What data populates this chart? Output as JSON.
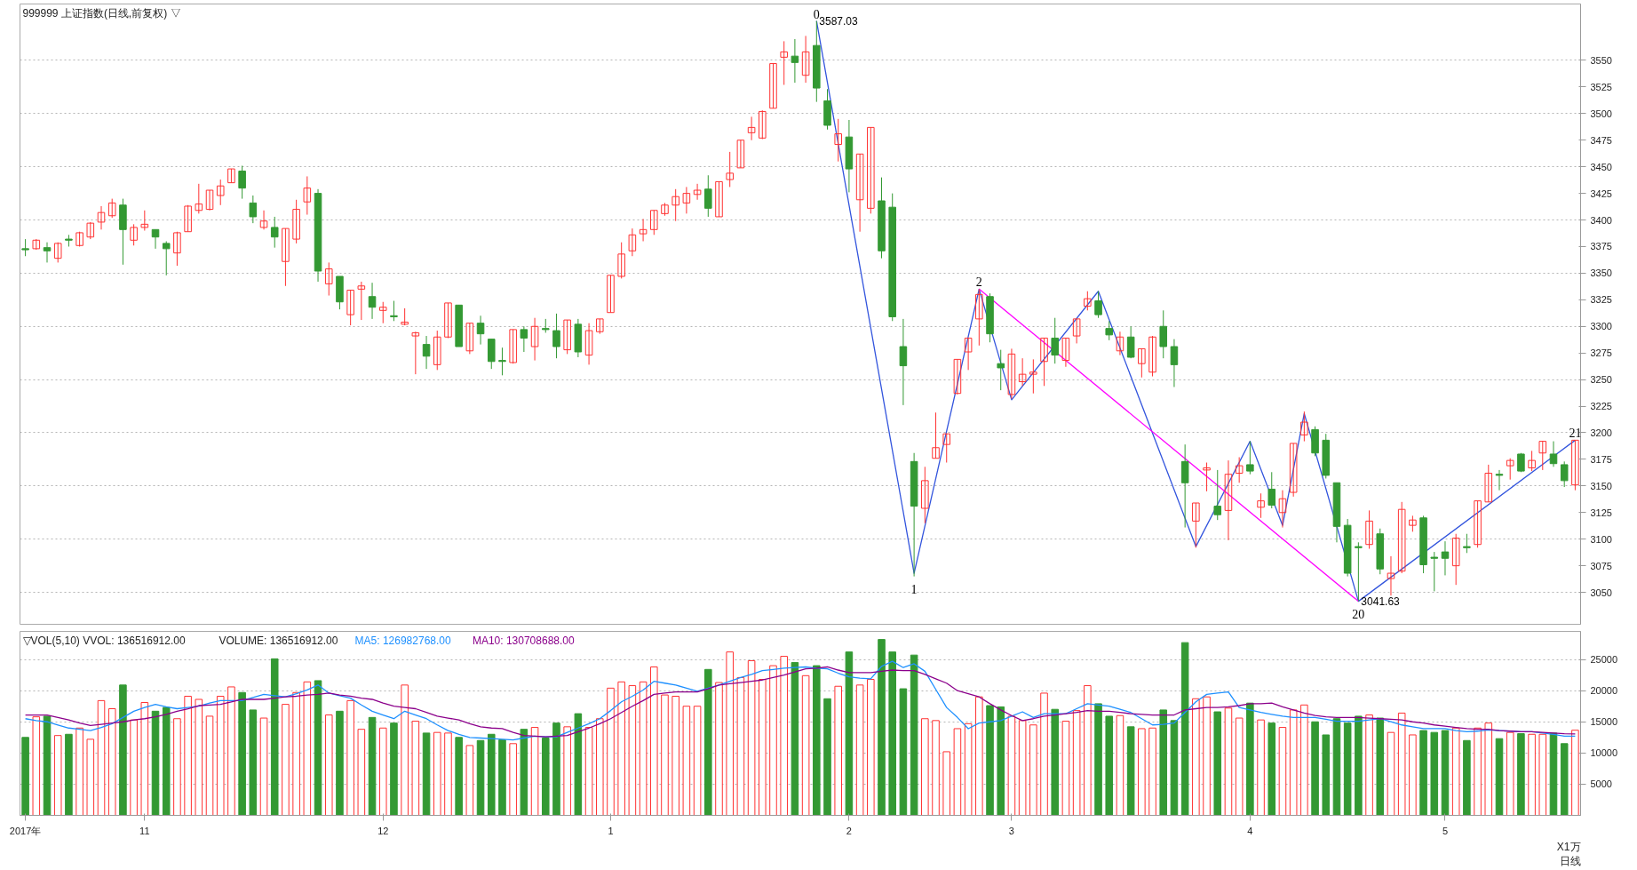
{
  "chart_data": [
    {
      "type": "candlestick",
      "title": "999999 上证指数(日线,前复权) ▽",
      "tick_labels": "y",
      "grid": "y",
      "ylim": [
        3020,
        3603
      ],
      "yticks": [
        3050,
        3075,
        3100,
        3125,
        3150,
        3175,
        3200,
        3225,
        3250,
        3275,
        3300,
        3325,
        3350,
        3375,
        3400,
        3425,
        3450,
        3475,
        3500,
        3525,
        3550
      ],
      "categories": [
        null,
        null,
        null,
        null,
        null,
        null,
        null,
        null,
        null,
        null,
        null,
        null,
        null,
        null,
        null,
        null,
        null,
        null,
        null,
        null,
        null,
        null,
        null,
        null,
        null,
        null,
        null,
        null,
        null,
        null,
        null,
        null,
        null,
        null,
        null,
        null,
        null,
        null,
        null,
        null,
        null,
        null,
        null,
        null,
        null,
        null,
        null,
        null,
        null,
        null,
        null,
        null,
        null,
        null,
        null,
        null,
        null,
        null,
        null,
        null,
        null,
        null,
        null,
        null,
        null,
        null,
        null,
        null,
        null,
        null,
        null,
        null,
        null,
        null,
        null,
        null,
        null,
        null,
        null,
        null,
        null,
        null,
        null,
        null,
        null,
        null,
        null,
        null,
        null,
        null,
        null,
        null,
        null,
        null,
        null,
        null,
        null,
        null,
        null,
        null,
        null,
        null,
        null,
        null,
        null,
        null,
        null,
        null,
        null,
        null,
        null,
        null,
        null,
        null,
        null,
        null,
        null,
        null,
        null,
        null,
        null,
        null,
        null,
        null,
        null,
        null,
        null,
        null,
        null,
        null,
        null,
        null,
        null,
        null,
        null,
        null,
        null,
        null,
        null,
        null,
        null,
        null,
        null,
        null
      ],
      "ohlc": [
        [
          3373,
          3382,
          3366,
          3372
        ],
        [
          3373,
          3382,
          3372,
          3381
        ],
        [
          3374,
          3379,
          3360,
          3371
        ],
        [
          3364,
          3379,
          3360,
          3378
        ],
        [
          3382,
          3386,
          3375,
          3381
        ],
        [
          3376,
          3389,
          3375,
          3388
        ],
        [
          3384,
          3398,
          3382,
          3397
        ],
        [
          3398,
          3413,
          3391,
          3407
        ],
        [
          3404,
          3420,
          3402,
          3416
        ],
        [
          3414,
          3420,
          3358,
          3391
        ],
        [
          3381,
          3396,
          3376,
          3393
        ],
        [
          3393,
          3409,
          3390,
          3396
        ],
        [
          3391,
          3391,
          3373,
          3384
        ],
        [
          3378,
          3380,
          3348,
          3373
        ],
        [
          3369,
          3389,
          3357,
          3388
        ],
        [
          3389,
          3414,
          3389,
          3413
        ],
        [
          3409,
          3434,
          3406,
          3415
        ],
        [
          3410,
          3428,
          3409,
          3428
        ],
        [
          3423,
          3438,
          3414,
          3432
        ],
        [
          3435,
          3448,
          3435,
          3448
        ],
        [
          3446,
          3451,
          3420,
          3430
        ],
        [
          3416,
          3423,
          3397,
          3403
        ],
        [
          3393,
          3409,
          3391,
          3399
        ],
        [
          3393,
          3403,
          3374,
          3384
        ],
        [
          3361,
          3392,
          3338,
          3392
        ],
        [
          3382,
          3419,
          3378,
          3410
        ],
        [
          3417,
          3441,
          3405,
          3430
        ],
        [
          3425,
          3429,
          3342,
          3352
        ],
        [
          3340,
          3360,
          3329,
          3354
        ],
        [
          3347,
          3347,
          3316,
          3323
        ],
        [
          3311,
          3334,
          3301,
          3334
        ],
        [
          3335,
          3342,
          3306,
          3338
        ],
        [
          3328,
          3341,
          3307,
          3318
        ],
        [
          3315,
          3323,
          3303,
          3318
        ],
        [
          3310,
          3324,
          3305,
          3309
        ],
        [
          3302,
          3317,
          3301,
          3304
        ],
        [
          3291,
          3295,
          3255,
          3294
        ],
        [
          3283,
          3291,
          3260,
          3272
        ],
        [
          3264,
          3296,
          3259,
          3290
        ],
        [
          3290,
          3322,
          3289,
          3322
        ],
        [
          3320,
          3320,
          3281,
          3281
        ],
        [
          3277,
          3303,
          3274,
          3303
        ],
        [
          3303,
          3310,
          3283,
          3293
        ],
        [
          3288,
          3288,
          3260,
          3267
        ],
        [
          3268,
          3280,
          3254,
          3267
        ],
        [
          3266,
          3297,
          3265,
          3297
        ],
        [
          3297,
          3300,
          3276,
          3289
        ],
        [
          3281,
          3308,
          3268,
          3300
        ],
        [
          3298,
          3307,
          3294,
          3297
        ],
        [
          3296,
          3312,
          3270,
          3281
        ],
        [
          3278,
          3306,
          3274,
          3306
        ],
        [
          3302,
          3307,
          3271,
          3276
        ],
        [
          3273,
          3303,
          3264,
          3296
        ],
        [
          3295,
          3307,
          3293,
          3307
        ],
        [
          3313,
          3348,
          3313,
          3348
        ],
        [
          3347,
          3379,
          3345,
          3368
        ],
        [
          3371,
          3392,
          3366,
          3386
        ],
        [
          3387,
          3401,
          3380,
          3391
        ],
        [
          3391,
          3409,
          3386,
          3409
        ],
        [
          3406,
          3416,
          3404,
          3414
        ],
        [
          3414,
          3429,
          3399,
          3422
        ],
        [
          3416,
          3431,
          3406,
          3425
        ],
        [
          3424,
          3434,
          3419,
          3428
        ],
        [
          3429,
          3442,
          3403,
          3411
        ],
        [
          3403,
          3436,
          3403,
          3436
        ],
        [
          3438,
          3464,
          3431,
          3444
        ],
        [
          3449,
          3475,
          3449,
          3475
        ],
        [
          3482,
          3497,
          3475,
          3487
        ],
        [
          3477,
          3503,
          3476,
          3502
        ],
        [
          3505,
          3547,
          3505,
          3547
        ],
        [
          3553,
          3568,
          3527,
          3558
        ],
        [
          3554,
          3570,
          3529,
          3548
        ],
        [
          3536,
          3573,
          3529,
          3558
        ],
        [
          3564,
          3587.03,
          3511,
          3524
        ],
        [
          3512,
          3523,
          3485,
          3489
        ],
        [
          3471,
          3495,
          3455,
          3481
        ],
        [
          3478,
          3494,
          3426,
          3448
        ],
        [
          3419,
          3462,
          3389,
          3462
        ],
        [
          3411,
          3487,
          3406,
          3487
        ],
        [
          3418,
          3440,
          3364,
          3371
        ],
        [
          3412,
          3425,
          3305,
          3309
        ],
        [
          3281,
          3307,
          3226,
          3263
        ],
        [
          3173,
          3181,
          3065,
          3131
        ],
        [
          3129,
          3168,
          3115,
          3155
        ],
        [
          3176,
          3219,
          3176,
          3186
        ],
        [
          3189,
          3199,
          3172,
          3199
        ],
        [
          3237,
          3269,
          3236,
          3269
        ],
        [
          3276,
          3289,
          3259,
          3289
        ],
        [
          3307,
          3335,
          3282,
          3330
        ],
        [
          3328,
          3331,
          3285,
          3293
        ],
        [
          3265,
          3278,
          3240,
          3261
        ],
        [
          3236,
          3279,
          3232,
          3274
        ],
        [
          3248,
          3270,
          3244,
          3255
        ],
        [
          3255,
          3269,
          3237,
          3257
        ],
        [
          3267,
          3289,
          3244,
          3289
        ],
        [
          3289,
          3308,
          3265,
          3273
        ],
        [
          3268,
          3289,
          3262,
          3289
        ],
        [
          3291,
          3307,
          3284,
          3307
        ],
        [
          3319,
          3333,
          3315,
          3326
        ],
        [
          3324,
          3333,
          3308,
          3311
        ],
        [
          3298,
          3305,
          3287,
          3292
        ],
        [
          3277,
          3295,
          3273,
          3290
        ],
        [
          3290,
          3300,
          3270,
          3271
        ],
        [
          3265,
          3279,
          3252,
          3279
        ],
        [
          3257,
          3291,
          3253,
          3290
        ],
        [
          3300,
          3315,
          3270,
          3281
        ],
        [
          3281,
          3288,
          3243,
          3264
        ],
        [
          3173,
          3189,
          3111,
          3153
        ],
        [
          3117,
          3134,
          3092,
          3134
        ],
        [
          3165,
          3172,
          3145,
          3167
        ],
        [
          3131,
          3165,
          3118,
          3123
        ],
        [
          3127,
          3174,
          3099,
          3161
        ],
        [
          3162,
          3177,
          3153,
          3169
        ],
        [
          3170,
          3192,
          3161,
          3164
        ],
        [
          3130,
          3143,
          3120,
          3136
        ],
        [
          3147,
          3163,
          3129,
          3132
        ],
        [
          3125,
          3146,
          3111,
          3138
        ],
        [
          3144,
          3190,
          3140,
          3190
        ],
        [
          3198,
          3220,
          3192,
          3210
        ],
        [
          3203,
          3206,
          3178,
          3181
        ],
        [
          3193,
          3199,
          3157,
          3160
        ],
        [
          3153,
          3153,
          3097,
          3112
        ],
        [
          3113,
          3119,
          3065,
          3068
        ],
        [
          3093,
          3097,
          3041.63,
          3092
        ],
        [
          3095,
          3127,
          3091,
          3117
        ],
        [
          3105,
          3110,
          3067,
          3072
        ],
        [
          3063,
          3084,
          3047,
          3068
        ],
        [
          3070,
          3135,
          3068,
          3128
        ],
        [
          3113,
          3122,
          3107,
          3118
        ],
        [
          3120,
          3122,
          3068,
          3076
        ],
        [
          3083,
          3088,
          3051,
          3082
        ],
        [
          3088,
          3098,
          3066,
          3082
        ],
        [
          3075,
          3105,
          3057,
          3101
        ],
        [
          3093,
          3105,
          3087,
          3092
        ],
        [
          3095,
          3136,
          3092,
          3136
        ],
        [
          3135,
          3170,
          3135,
          3162
        ],
        [
          3161,
          3165,
          3146,
          3160
        ],
        [
          3169,
          3176,
          3156,
          3174
        ],
        [
          3180,
          3181,
          3163,
          3164
        ],
        [
          3167,
          3183,
          3164,
          3174
        ],
        [
          3181,
          3192,
          3165,
          3192
        ],
        [
          3180,
          3192,
          3168,
          3171
        ],
        [
          3170,
          3173,
          3149,
          3155
        ],
        [
          3151,
          3193,
          3146,
          3193
        ]
      ],
      "colors": [
        "#339933",
        "#ff3232",
        "#339933",
        "#ff3232",
        "#339933",
        "#ff3232",
        "#ff3232",
        "#ff3232",
        "#ff3232",
        "#339933",
        "#ff3232",
        "#ff3232",
        "#339933",
        "#339933",
        "#ff3232",
        "#ff3232",
        "#ff3232",
        "#ff3232",
        "#ff3232",
        "#ff3232",
        "#339933",
        "#339933",
        "#ff3232",
        "#339933",
        "#ff3232",
        "#ff3232",
        "#ff3232",
        "#339933",
        "#ff3232",
        "#339933",
        "#ff3232",
        "#ff3232",
        "#339933",
        "#ff3232",
        "#339933",
        "#ff3232",
        "#ff3232",
        "#339933",
        "#ff3232",
        "#ff3232",
        "#339933",
        "#ff3232",
        "#339933",
        "#339933",
        "#339933",
        "#ff3232",
        "#339933",
        "#ff3232",
        "#339933",
        "#339933",
        "#ff3232",
        "#339933",
        "#ff3232",
        "#ff3232",
        "#ff3232",
        "#ff3232",
        "#ff3232",
        "#ff3232",
        "#ff3232",
        "#ff3232",
        "#ff3232",
        "#ff3232",
        "#ff3232",
        "#339933",
        "#ff3232",
        "#ff3232",
        "#ff3232",
        "#ff3232",
        "#ff3232",
        "#ff3232",
        "#ff3232",
        "#339933",
        "#ff3232",
        "#339933",
        "#339933",
        "#ff3232",
        "#339933",
        "#ff3232",
        "#ff3232",
        "#339933",
        "#339933",
        "#339933",
        "#339933",
        "#ff3232",
        "#ff3232",
        "#ff3232",
        "#ff3232",
        "#ff3232",
        "#ff3232",
        "#339933",
        "#339933",
        "#ff3232",
        "#ff3232",
        "#ff3232",
        "#ff3232",
        "#339933",
        "#ff3232",
        "#ff3232",
        "#ff3232",
        "#339933",
        "#339933",
        "#ff3232",
        "#339933",
        "#ff3232",
        "#ff3232",
        "#339933",
        "#339933",
        "#339933",
        "#ff3232",
        "#ff3232",
        "#339933",
        "#ff3232",
        "#ff3232",
        "#339933",
        "#ff3232",
        "#339933",
        "#ff3232",
        "#ff3232",
        "#ff3232",
        "#339933",
        "#339933",
        "#339933",
        "#339933",
        "#339933",
        "#ff3232",
        "#339933",
        "#ff3232",
        "#ff3232",
        "#ff3232",
        "#339933",
        "#339933",
        "#339933",
        "#ff3232",
        "#339933",
        "#ff3232",
        "#ff3232",
        "#339933",
        "#ff3232",
        "#339933",
        "#ff3232",
        "#ff3232",
        "#339933",
        "#339933",
        "#ff3232"
      ],
      "series": [
        {
          "type": "line",
          "color": "#3355dd",
          "values": [
            null,
            null,
            null,
            null,
            null,
            null,
            null,
            null,
            null,
            null,
            null,
            null,
            null,
            null,
            null,
            null,
            null,
            null,
            null,
            null,
            null,
            null,
            null,
            null,
            null,
            null,
            null,
            null,
            null,
            null,
            null,
            null,
            null,
            null,
            null,
            null,
            null,
            null,
            null,
            null,
            null,
            null,
            null,
            null,
            null,
            null,
            null,
            null,
            null,
            null,
            null,
            null,
            null,
            null,
            null,
            null,
            null,
            null,
            null,
            null,
            null,
            null,
            null,
            null,
            null,
            null,
            null,
            null,
            null,
            null,
            null,
            null,
            null,
            3587.03,
            null,
            null,
            null,
            null,
            null,
            null,
            null,
            null,
            3068,
            null,
            null,
            null,
            null,
            null,
            3335,
            null,
            null,
            3231,
            null,
            null,
            null,
            null,
            null,
            null,
            null,
            3333,
            null,
            null,
            null,
            null,
            null,
            null,
            null,
            null,
            3093,
            null,
            null,
            null,
            null,
            3192,
            null,
            null,
            3113,
            null,
            3218,
            null,
            null,
            null,
            null,
            3041.63,
            null,
            null,
            null,
            null,
            null,
            null,
            null,
            null,
            null,
            null,
            null,
            null,
            null,
            null,
            null,
            null,
            null,
            null,
            null,
            3193
          ]
        },
        {
          "type": "line",
          "color": "#ff00ff",
          "values": [
            null,
            null,
            null,
            null,
            null,
            null,
            null,
            null,
            null,
            null,
            null,
            null,
            null,
            null,
            null,
            null,
            null,
            null,
            null,
            null,
            null,
            null,
            null,
            null,
            null,
            null,
            null,
            null,
            null,
            null,
            null,
            null,
            null,
            null,
            null,
            null,
            null,
            null,
            null,
            null,
            null,
            null,
            null,
            null,
            null,
            null,
            null,
            null,
            null,
            null,
            null,
            null,
            null,
            null,
            null,
            null,
            null,
            null,
            null,
            null,
            null,
            null,
            null,
            null,
            null,
            null,
            null,
            null,
            null,
            null,
            null,
            null,
            null,
            null,
            null,
            null,
            null,
            null,
            null,
            null,
            null,
            null,
            null,
            null,
            null,
            null,
            null,
            null,
            3335,
            null,
            null,
            null,
            null,
            null,
            null,
            null,
            null,
            null,
            null,
            null,
            null,
            null,
            null,
            null,
            null,
            null,
            null,
            null,
            null,
            null,
            null,
            null,
            null,
            null,
            null,
            null,
            null,
            null,
            null,
            null,
            null,
            null,
            null,
            3041.63,
            null,
            null,
            null,
            null,
            null,
            null,
            null,
            null,
            null,
            null,
            null,
            null,
            null,
            null,
            null,
            null,
            null,
            null,
            null,
            null
          ]
        }
      ],
      "annotations": [
        {
          "text": "0",
          "y": 3587.03
        },
        "3587.03",
        {
          "text": "1",
          "y": 3065
        },
        {
          "text": "2",
          "y": 3335
        },
        {
          "text": "20",
          "y": 3041.63
        },
        "3041.63",
        {
          "text": "21",
          "y": 3193
        }
      ]
    },
    {
      "type": "bar",
      "title": "▽VOL(5,10) VVOL: 136516912.00",
      "grid": "y",
      "ylim": [
        0,
        29500
      ],
      "yticks": [
        5000,
        10000,
        15000,
        20000,
        25000
      ],
      "categories": [
        "2017年",
        null,
        null,
        null,
        null,
        null,
        null,
        null,
        null,
        null,
        null,
        "11",
        null,
        null,
        null,
        null,
        null,
        null,
        null,
        null,
        null,
        null,
        null,
        null,
        null,
        null,
        null,
        null,
        null,
        null,
        null,
        null,
        null,
        "12",
        null,
        null,
        null,
        null,
        null,
        null,
        null,
        null,
        null,
        null,
        null,
        null,
        null,
        null,
        null,
        null,
        null,
        null,
        null,
        null,
        "1",
        null,
        null,
        null,
        null,
        null,
        null,
        null,
        null,
        null,
        null,
        null,
        null,
        null,
        null,
        null,
        null,
        null,
        null,
        null,
        null,
        null,
        "2",
        null,
        null,
        null,
        null,
        null,
        null,
        null,
        null,
        null,
        null,
        null,
        null,
        null,
        null,
        "3",
        null,
        null,
        null,
        null,
        null,
        null,
        null,
        null,
        null,
        null,
        null,
        null,
        null,
        null,
        null,
        null,
        null,
        null,
        null,
        null,
        null,
        "4",
        null,
        null,
        null,
        null,
        null,
        null,
        null,
        null,
        null,
        null,
        null,
        null,
        null,
        null,
        null,
        null,
        null,
        "5",
        null,
        null,
        null,
        null,
        null,
        null,
        null,
        null,
        null,
        null,
        null,
        null
      ],
      "values": [
        12500,
        15800,
        15900,
        12800,
        13000,
        14000,
        12200,
        18400,
        17100,
        20900,
        15300,
        18100,
        16700,
        17300,
        15500,
        19100,
        18600,
        15900,
        19100,
        20600,
        19700,
        16900,
        15600,
        25100,
        17800,
        19700,
        21400,
        21600,
        16100,
        16700,
        18400,
        13800,
        15700,
        14000,
        14800,
        20900,
        15100,
        13200,
        13300,
        13200,
        12500,
        11200,
        12000,
        13000,
        12100,
        11500,
        13800,
        14100,
        12400,
        14800,
        14200,
        16300,
        14100,
        15500,
        20400,
        21400,
        20800,
        21400,
        23800,
        19300,
        19100,
        17500,
        17500,
        23400,
        21300,
        26200,
        22100,
        24800,
        21800,
        24000,
        25500,
        24500,
        22400,
        24000,
        18700,
        20700,
        26200,
        20900,
        21800,
        28200,
        26200,
        20300,
        25700,
        15500,
        15200,
        10200,
        13900,
        14700,
        19000,
        17600,
        17400,
        15900,
        15200,
        14500,
        19600,
        17000,
        15100,
        16800,
        20800,
        17900,
        15900,
        16000,
        14200,
        13900,
        14000,
        16900,
        15200,
        27700,
        18700,
        19000,
        16600,
        17200,
        15600,
        18000,
        15300,
        14800,
        14100,
        16900,
        17700,
        15000,
        12900,
        15500,
        14800,
        15900,
        16100,
        15600,
        13300,
        16400,
        12900,
        13600,
        13300,
        13600,
        14000,
        12000,
        14000,
        14800,
        12300,
        13300,
        13100,
        13000,
        13000,
        13200,
        11500,
        13652
      ],
      "colors": [
        "#339933",
        "#ff3232",
        "#339933",
        "#ff3232",
        "#339933",
        "#ff3232",
        "#ff3232",
        "#ff3232",
        "#ff3232",
        "#339933",
        "#ff3232",
        "#ff3232",
        "#339933",
        "#339933",
        "#ff3232",
        "#ff3232",
        "#ff3232",
        "#ff3232",
        "#ff3232",
        "#ff3232",
        "#339933",
        "#339933",
        "#ff3232",
        "#339933",
        "#ff3232",
        "#ff3232",
        "#ff3232",
        "#339933",
        "#ff3232",
        "#339933",
        "#ff3232",
        "#ff3232",
        "#339933",
        "#ff3232",
        "#339933",
        "#ff3232",
        "#ff3232",
        "#339933",
        "#ff3232",
        "#ff3232",
        "#339933",
        "#ff3232",
        "#339933",
        "#339933",
        "#339933",
        "#ff3232",
        "#339933",
        "#ff3232",
        "#339933",
        "#339933",
        "#ff3232",
        "#339933",
        "#ff3232",
        "#ff3232",
        "#ff3232",
        "#ff3232",
        "#ff3232",
        "#ff3232",
        "#ff3232",
        "#ff3232",
        "#ff3232",
        "#ff3232",
        "#ff3232",
        "#339933",
        "#ff3232",
        "#ff3232",
        "#ff3232",
        "#ff3232",
        "#ff3232",
        "#ff3232",
        "#ff3232",
        "#339933",
        "#ff3232",
        "#339933",
        "#339933",
        "#ff3232",
        "#339933",
        "#ff3232",
        "#ff3232",
        "#339933",
        "#339933",
        "#339933",
        "#339933",
        "#ff3232",
        "#ff3232",
        "#ff3232",
        "#ff3232",
        "#ff3232",
        "#ff3232",
        "#339933",
        "#339933",
        "#ff3232",
        "#ff3232",
        "#ff3232",
        "#ff3232",
        "#339933",
        "#ff3232",
        "#ff3232",
        "#ff3232",
        "#339933",
        "#339933",
        "#ff3232",
        "#339933",
        "#ff3232",
        "#ff3232",
        "#339933",
        "#339933",
        "#339933",
        "#ff3232",
        "#ff3232",
        "#339933",
        "#ff3232",
        "#ff3232",
        "#339933",
        "#ff3232",
        "#339933",
        "#ff3232",
        "#ff3232",
        "#ff3232",
        "#339933",
        "#339933",
        "#339933",
        "#339933",
        "#339933",
        "#ff3232",
        "#339933",
        "#ff3232",
        "#ff3232",
        "#ff3232",
        "#339933",
        "#339933",
        "#339933",
        "#ff3232",
        "#339933",
        "#ff3232",
        "#ff3232",
        "#339933",
        "#ff3232",
        "#339933",
        "#ff3232",
        "#ff3232",
        "#339933",
        "#339933",
        "#ff3232"
      ],
      "series": [
        {
          "type": "line",
          "name": "MA5: 126982768.00",
          "color": "#1e90ff",
          "values": [
            15500,
            15200,
            15000,
            14500,
            14000,
            13800,
            13600,
            14100,
            14700,
            15700,
            16700,
            17300,
            17800,
            17400,
            17100,
            17300,
            17500,
            18000,
            18400,
            18400,
            18400,
            18900,
            19400,
            19200,
            19000,
            19500,
            20100,
            20900,
            19600,
            19200,
            18800,
            17700,
            16700,
            16100,
            15500,
            16700,
            16100,
            15500,
            14500,
            13600,
            13000,
            12500,
            12400,
            12300,
            12200,
            12100,
            12400,
            12700,
            12600,
            12600,
            13300,
            14000,
            14700,
            15500,
            16800,
            18200,
            19100,
            20100,
            21500,
            21200,
            20900,
            20400,
            19900,
            20400,
            20900,
            21500,
            22100,
            22600,
            23200,
            23400,
            23600,
            23700,
            23800,
            23600,
            23500,
            22800,
            22200,
            22000,
            21900,
            23900,
            24700,
            23700,
            24300,
            23100,
            20200,
            17300,
            15700,
            13900,
            14800,
            15000,
            15200,
            15900,
            16600,
            15700,
            16300,
            16300,
            16300,
            17100,
            17900,
            17700,
            17500,
            17000,
            16500,
            15500,
            14500,
            14600,
            14800,
            16500,
            18200,
            19400,
            19600,
            19800,
            17300,
            16900,
            16500,
            16200,
            15900,
            15700,
            15700,
            15700,
            15400,
            15100,
            15100,
            15100,
            15300,
            15500,
            15000,
            14500,
            14200,
            13900,
            13900,
            13900,
            13600,
            13400,
            13500,
            13700,
            13600,
            13500,
            13400,
            13400,
            13200,
            13000,
            12700,
            12698
          ]
        },
        {
          "type": "line",
          "name": "MA10: 130708688.00",
          "color": "#8b008b",
          "values": [
            16100,
            16100,
            16100,
            15700,
            15300,
            14800,
            14400,
            14600,
            14800,
            15000,
            15300,
            15500,
            15800,
            16200,
            16700,
            17100,
            17600,
            17700,
            17800,
            18200,
            18600,
            18600,
            18600,
            18800,
            19000,
            19100,
            19300,
            19400,
            19600,
            19300,
            19100,
            18800,
            18600,
            18000,
            17500,
            17300,
            17100,
            16500,
            15900,
            15600,
            15300,
            14700,
            14200,
            14000,
            13900,
            13300,
            12800,
            12700,
            12600,
            12700,
            12800,
            13400,
            14000,
            14700,
            15500,
            16500,
            17500,
            18400,
            19400,
            19600,
            19800,
            19800,
            19800,
            20300,
            20900,
            21100,
            21300,
            21500,
            21700,
            22100,
            22500,
            23000,
            23500,
            23600,
            23800,
            23300,
            22900,
            22900,
            22900,
            23100,
            23300,
            23200,
            23200,
            22600,
            21900,
            21200,
            20000,
            19500,
            19000,
            17900,
            16900,
            16000,
            15200,
            15500,
            15900,
            16100,
            16300,
            16500,
            16800,
            16700,
            16700,
            16500,
            16300,
            16200,
            16100,
            16100,
            16100,
            16900,
            17100,
            17300,
            17300,
            17400,
            17600,
            17900,
            17900,
            18000,
            17400,
            16900,
            16400,
            16000,
            15800,
            15700,
            15700,
            15700,
            15600,
            15500,
            15400,
            15300,
            15000,
            14800,
            14500,
            14300,
            14100,
            13900,
            13800,
            13800,
            13600,
            13500,
            13400,
            13400,
            13300,
            13200,
            13100,
            13071
          ]
        }
      ],
      "annotations": [
        "VOLUME: 136516912.00",
        "X1万",
        "日线"
      ]
    }
  ]
}
